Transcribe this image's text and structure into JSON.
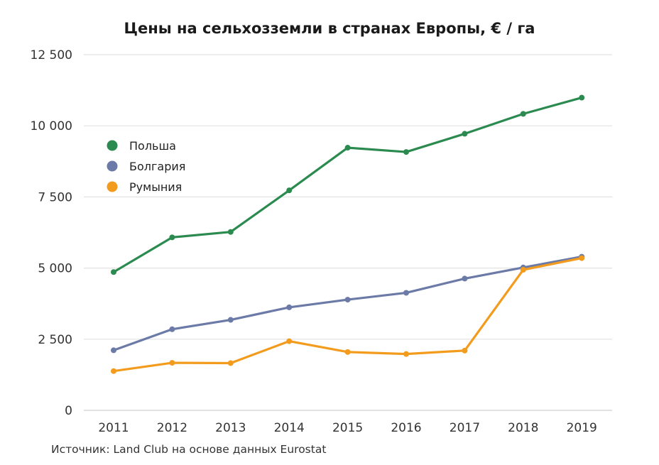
{
  "chart_data": {
    "type": "line",
    "title": "Цены на сельхозземли в странах Европы, € / га",
    "xlabel": "",
    "ylabel": "",
    "categories": [
      "2011",
      "2012",
      "2013",
      "2014",
      "2015",
      "2016",
      "2017",
      "2018",
      "2019"
    ],
    "ylim": [
      0,
      12500
    ],
    "yticks": [
      0,
      2500,
      5000,
      7500,
      10000,
      12500
    ],
    "ytick_labels": [
      "0",
      "2 500",
      "5 000",
      "7 500",
      "10 000",
      "12 500"
    ],
    "grid": "horizontal",
    "legend_position": "upper-left",
    "series": [
      {
        "name": "Польша",
        "color": "#2a8a4f",
        "values": [
          4860,
          6080,
          6270,
          7730,
          9230,
          9080,
          9720,
          10420,
          10990
        ]
      },
      {
        "name": "Болгария",
        "color": "#6b7aa6",
        "values": [
          2110,
          2850,
          3180,
          3620,
          3890,
          4130,
          4630,
          5020,
          5400
        ]
      },
      {
        "name": "Румыния",
        "color": "#f39b1c",
        "values": [
          1380,
          1670,
          1660,
          2430,
          2050,
          1980,
          2100,
          4940,
          5350
        ]
      }
    ],
    "source": "Источник:  Land Club на основе данных Eurostat"
  }
}
